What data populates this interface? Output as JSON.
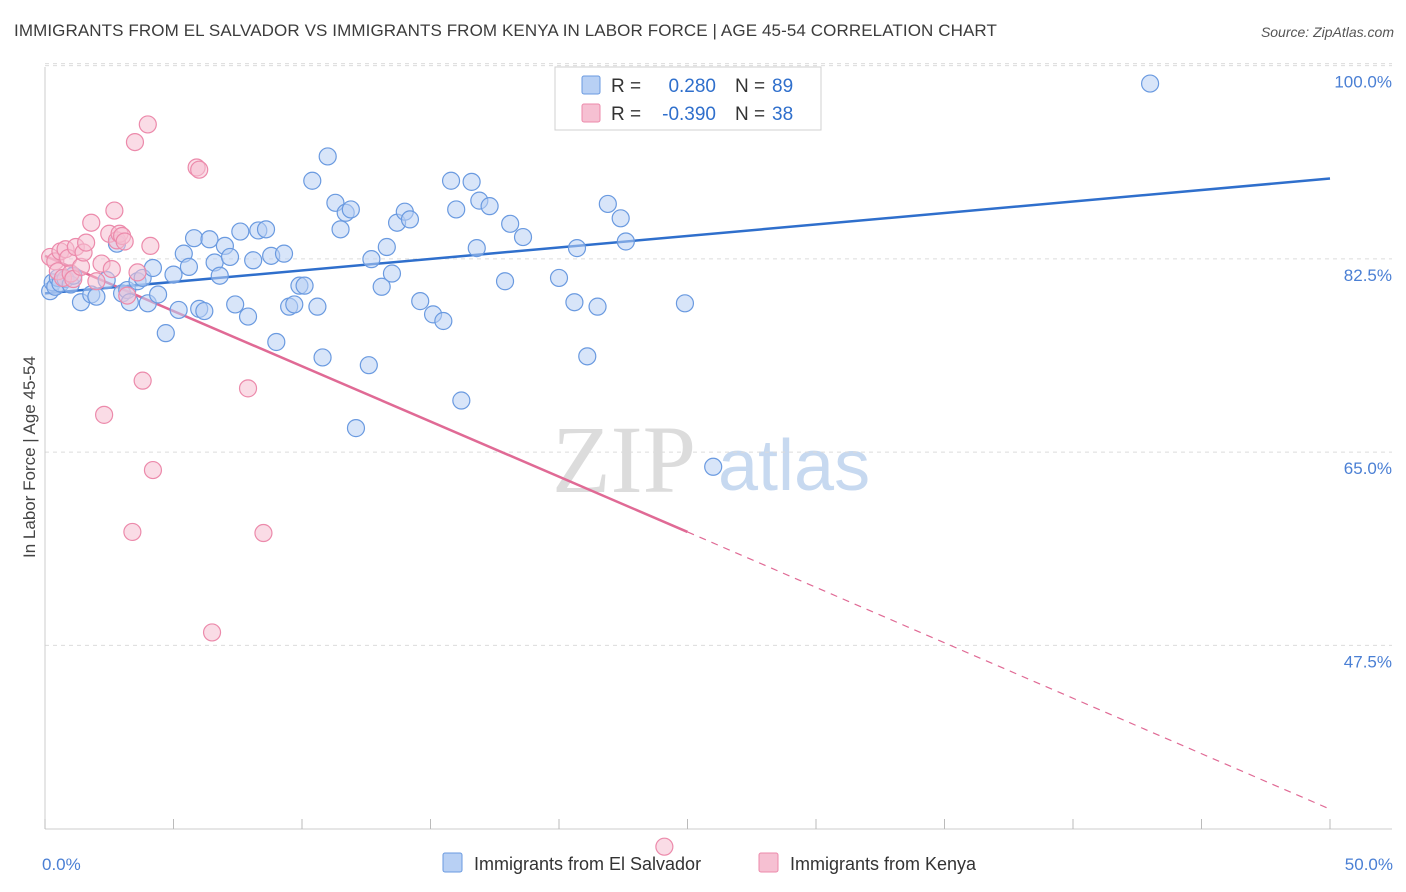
{
  "title": "IMMIGRANTS FROM EL SALVADOR VS IMMIGRANTS FROM KENYA IN LABOR FORCE | AGE 45-54 CORRELATION CHART",
  "source": "Source: ZipAtlas.com",
  "watermark": {
    "zip": "ZIP",
    "atlas": "atlas"
  },
  "colors": {
    "blue_fill": "#b8d0f4",
    "blue_stroke": "#6a9ae0",
    "blue_line": "#2f6fcc",
    "pink_fill": "#f6c0d2",
    "pink_stroke": "#ec8aab",
    "pink_line": "#e06a95",
    "value_blue": "#2f6fcc",
    "grid": "#dcdcdc"
  },
  "legend_stats": {
    "rows": [
      {
        "r_label": "R =",
        "r_value": "0.280",
        "n_label": "N =",
        "n_value": "89"
      },
      {
        "r_label": "R =",
        "r_value": "-0.390",
        "n_label": "N =",
        "n_value": "38"
      }
    ]
  },
  "chart_data": {
    "type": "scatter",
    "title": "IMMIGRANTS FROM EL SALVADOR VS IMMIGRANTS FROM KENYA IN LABOR FORCE | AGE 45-54 CORRELATION CHART",
    "xlabel": "",
    "ylabel": "In Labor Force | Age 45-54",
    "xlim": [
      0,
      50
    ],
    "ylim": [
      32.5,
      101.5
    ],
    "x_tick_labels": [
      {
        "value": 0,
        "label": "0.0%"
      },
      {
        "value": 50,
        "label": "50.0%"
      }
    ],
    "y_tick_labels": [
      {
        "value": 100,
        "label": "100.0%"
      },
      {
        "value": 82.5,
        "label": "82.5%"
      },
      {
        "value": 65,
        "label": "65.0%"
      },
      {
        "value": 47.5,
        "label": "47.5%"
      }
    ],
    "grid": true,
    "legend_position": "bottom",
    "series": [
      {
        "name": "Immigrants from El Salvador",
        "color": "#6a9ae0",
        "trendline": {
          "x": [
            0,
            50
          ],
          "y": [
            81.0,
            91.4
          ],
          "style": "solid"
        },
        "points": [
          [
            0.2,
            81.2
          ],
          [
            0.3,
            82.0
          ],
          [
            0.4,
            81.6
          ],
          [
            0.5,
            82.4
          ],
          [
            0.6,
            81.9
          ],
          [
            0.8,
            82.3
          ],
          [
            1.0,
            81.8
          ],
          [
            1.1,
            82.6
          ],
          [
            1.4,
            80.2
          ],
          [
            1.8,
            80.9
          ],
          [
            2.0,
            80.7
          ],
          [
            2.4,
            82.2
          ],
          [
            2.8,
            85.5
          ],
          [
            3.0,
            81.0
          ],
          [
            3.2,
            81.3
          ],
          [
            3.3,
            80.2
          ],
          [
            3.6,
            82.1
          ],
          [
            3.8,
            82.4
          ],
          [
            4.0,
            80.1
          ],
          [
            4.2,
            83.3
          ],
          [
            4.4,
            80.9
          ],
          [
            4.7,
            77.4
          ],
          [
            5.0,
            82.7
          ],
          [
            5.2,
            79.5
          ],
          [
            5.4,
            84.6
          ],
          [
            5.6,
            83.4
          ],
          [
            5.8,
            86.0
          ],
          [
            6.0,
            79.6
          ],
          [
            6.2,
            79.4
          ],
          [
            6.4,
            85.9
          ],
          [
            6.6,
            83.8
          ],
          [
            6.8,
            82.6
          ],
          [
            7.0,
            85.3
          ],
          [
            7.2,
            84.3
          ],
          [
            7.4,
            80.0
          ],
          [
            7.6,
            86.6
          ],
          [
            7.9,
            78.9
          ],
          [
            8.1,
            84.0
          ],
          [
            8.3,
            86.7
          ],
          [
            8.6,
            86.8
          ],
          [
            8.8,
            84.4
          ],
          [
            9.0,
            76.6
          ],
          [
            9.3,
            84.6
          ],
          [
            9.5,
            79.8
          ],
          [
            9.7,
            80.0
          ],
          [
            9.9,
            81.7
          ],
          [
            10.1,
            81.7
          ],
          [
            10.4,
            91.2
          ],
          [
            10.6,
            79.8
          ],
          [
            10.8,
            75.2
          ],
          [
            11.0,
            93.4
          ],
          [
            11.3,
            89.2
          ],
          [
            11.5,
            86.8
          ],
          [
            11.7,
            88.3
          ],
          [
            11.9,
            88.6
          ],
          [
            12.1,
            68.8
          ],
          [
            12.6,
            74.5
          ],
          [
            12.7,
            84.1
          ],
          [
            13.1,
            81.6
          ],
          [
            13.3,
            85.2
          ],
          [
            13.5,
            82.8
          ],
          [
            13.7,
            87.4
          ],
          [
            14.0,
            88.4
          ],
          [
            14.2,
            87.7
          ],
          [
            14.6,
            80.3
          ],
          [
            15.1,
            79.1
          ],
          [
            15.5,
            78.5
          ],
          [
            15.8,
            91.2
          ],
          [
            16.0,
            88.6
          ],
          [
            16.2,
            71.3
          ],
          [
            16.6,
            91.1
          ],
          [
            16.8,
            85.1
          ],
          [
            16.9,
            89.4
          ],
          [
            17.3,
            88.9
          ],
          [
            17.9,
            82.1
          ],
          [
            18.1,
            87.3
          ],
          [
            18.6,
            86.1
          ],
          [
            20.0,
            82.4
          ],
          [
            20.6,
            80.2
          ],
          [
            20.7,
            85.1
          ],
          [
            21.1,
            75.3
          ],
          [
            21.5,
            79.8
          ],
          [
            21.9,
            89.1
          ],
          [
            22.4,
            87.8
          ],
          [
            22.6,
            85.7
          ],
          [
            24.0,
            100.0
          ],
          [
            24.9,
            80.1
          ],
          [
            26.0,
            65.3
          ],
          [
            43.0,
            100.0
          ]
        ]
      },
      {
        "name": "Immigrants from Kenya",
        "color": "#ec8aab",
        "trendline": {
          "x": [
            0,
            25
          ],
          "y": [
            84.4,
            59.4
          ],
          "extended_to": [
            50,
            34.3
          ],
          "style": "solid-then-dashed"
        },
        "points": [
          [
            0.2,
            84.3
          ],
          [
            0.4,
            83.9
          ],
          [
            0.5,
            83.0
          ],
          [
            0.6,
            84.8
          ],
          [
            0.7,
            82.4
          ],
          [
            0.8,
            85.0
          ],
          [
            0.9,
            84.2
          ],
          [
            1.0,
            82.8
          ],
          [
            1.1,
            82.3
          ],
          [
            1.2,
            85.2
          ],
          [
            1.4,
            83.4
          ],
          [
            1.5,
            84.7
          ],
          [
            1.6,
            85.6
          ],
          [
            1.8,
            87.4
          ],
          [
            2.0,
            82.1
          ],
          [
            2.2,
            83.7
          ],
          [
            2.3,
            70.0
          ],
          [
            2.5,
            86.4
          ],
          [
            2.6,
            83.2
          ],
          [
            2.7,
            88.5
          ],
          [
            2.8,
            85.8
          ],
          [
            2.9,
            86.4
          ],
          [
            3.0,
            86.2
          ],
          [
            3.1,
            85.7
          ],
          [
            3.2,
            80.8
          ],
          [
            3.4,
            59.4
          ],
          [
            3.5,
            94.7
          ],
          [
            3.6,
            82.9
          ],
          [
            3.8,
            73.1
          ],
          [
            4.0,
            96.3
          ],
          [
            4.1,
            85.3
          ],
          [
            4.2,
            65.0
          ],
          [
            5.9,
            92.4
          ],
          [
            6.0,
            92.2
          ],
          [
            6.5,
            50.3
          ],
          [
            7.9,
            72.4
          ],
          [
            8.5,
            59.3
          ],
          [
            24.1,
            30.9
          ]
        ]
      }
    ]
  }
}
